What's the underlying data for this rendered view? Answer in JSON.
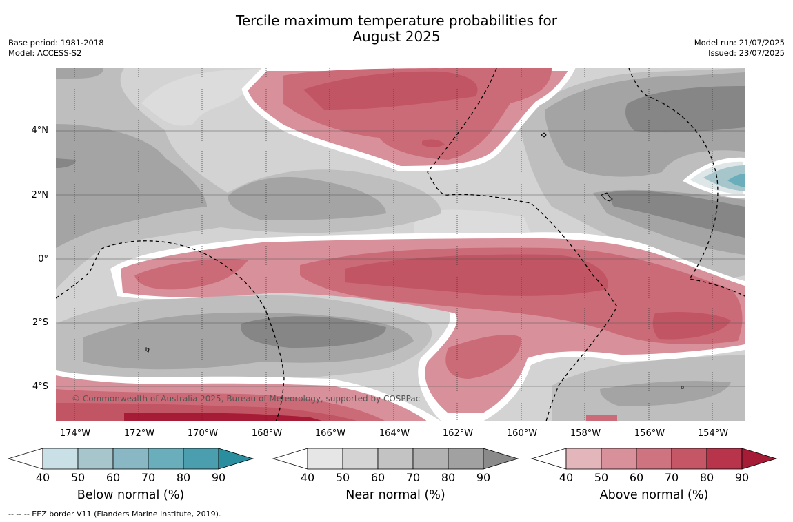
{
  "header": {
    "title_line1": "Tercile maximum temperature probabilities for",
    "title_line2": "August 2025",
    "base_period": "Base period: 1981-2018",
    "model": "Model: ACCESS-S2",
    "model_run": "Model run: 21/07/2025",
    "issued": "Issued: 23/07/2025"
  },
  "map": {
    "lat_labels": [
      "4°N",
      "2°N",
      "0°",
      "2°S",
      "4°S"
    ],
    "lon_labels": [
      "174°W",
      "172°W",
      "170°W",
      "168°W",
      "166°W",
      "164°W",
      "162°W",
      "160°W",
      "158°W",
      "156°W",
      "154°W"
    ],
    "copyright": "© Commonwealth of Australia 2025, Bureau of Meteorology, supported by COSPPac",
    "colors": {
      "near_bg": "#d3d3d3",
      "near_light": "#dcdcdc",
      "near_mid": "#bebebe",
      "near_dark": "#a4a4a4",
      "near_darkest": "#868686",
      "above_40": "#e3b6bc",
      "above_50": "#d8919b",
      "above_60": "#cc6b78",
      "above_70": "#c25564",
      "above_80": "#b43348",
      "above_90": "#a61b35",
      "below_50": "#a7c6cb",
      "below_60": "#8ab7c2",
      "below_70": "#6aaebc"
    }
  },
  "colorbars": [
    {
      "title": "Below normal (%)",
      "ticks": [
        "40",
        "50",
        "60",
        "70",
        "80",
        "90"
      ],
      "colors": [
        "#ffffff",
        "#c9e0e6",
        "#a7c6cb",
        "#89b7c3",
        "#6aaebc",
        "#4a9eae",
        "#2b8e9f"
      ]
    },
    {
      "title": "Near normal (%)",
      "ticks": [
        "40",
        "50",
        "60",
        "70",
        "80",
        "90"
      ],
      "colors": [
        "#ffffff",
        "#e6e6e6",
        "#d4d4d4",
        "#c3c3c3",
        "#b2b2b2",
        "#a1a1a1",
        "#8a8a8a"
      ]
    },
    {
      "title": "Above normal (%)",
      "ticks": [
        "40",
        "50",
        "60",
        "70",
        "80",
        "90"
      ],
      "colors": [
        "#ffffff",
        "#e3b6bc",
        "#d8919b",
        "#cd7480",
        "#c45665",
        "#b7344b",
        "#a61b35"
      ]
    }
  ],
  "footnote": "-- -- -- EEZ border V11 (Flanders Marine Institute, 2019)."
}
